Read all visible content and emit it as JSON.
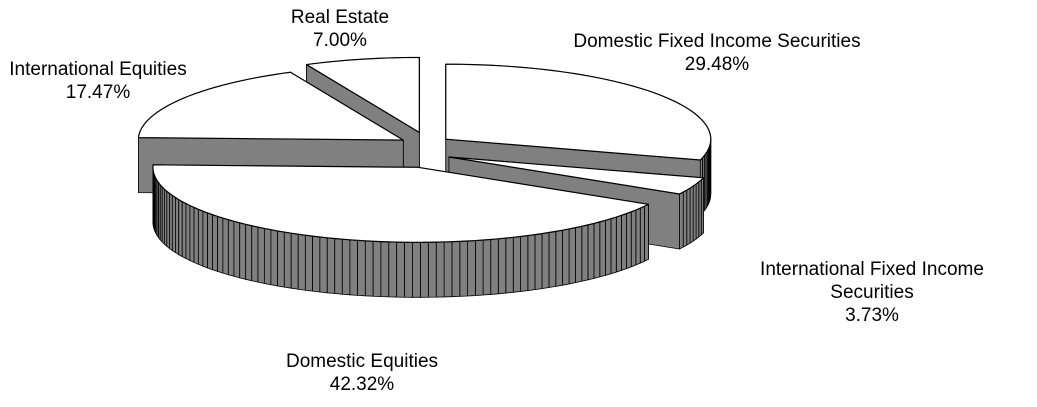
{
  "chart_data": {
    "type": "pie",
    "categories": [
      "Domestic Fixed Income Securities",
      "International Fixed Income Securities",
      "Domestic Equities",
      "International Equities",
      "Real Estate"
    ],
    "values": [
      29.48,
      3.73,
      42.32,
      17.47,
      7.0
    ],
    "value_labels": [
      "29.48%",
      "3.73%",
      "42.32%",
      "17.47%",
      "7.00%"
    ],
    "colors": {
      "top": "#ffffff",
      "side": "#808080",
      "edge": "#000000"
    }
  }
}
